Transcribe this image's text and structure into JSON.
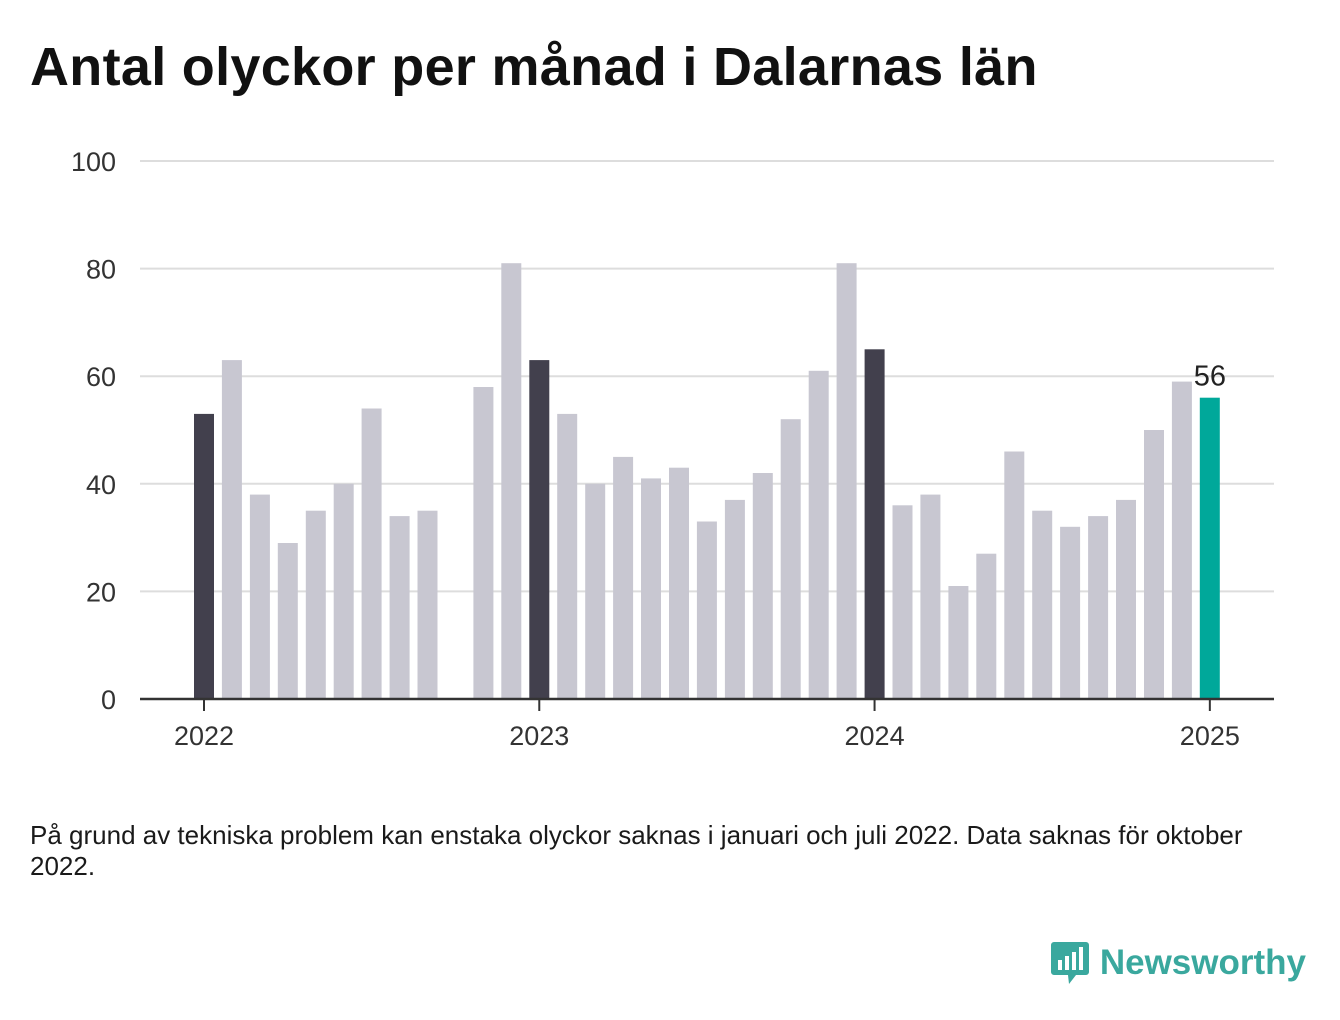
{
  "title": "Antal olyckor per månad i Dalarnas län",
  "note": "På grund av tekniska problem kan enstaka olyckor saknas i januari och juli 2022. Data saknas för oktober 2022.",
  "brand": {
    "name": "Newsworthy",
    "icon": "newsworthy-logo-icon"
  },
  "colors": {
    "bar": "#c8c7d1",
    "january": "#42404d",
    "latest": "#00a89a",
    "grid": "#dddddd",
    "axis": "#333333"
  },
  "chart_data": {
    "type": "bar",
    "title": "Antal olyckor per månad i Dalarnas län",
    "x_ticks": [
      "2022",
      "2023",
      "2024",
      "2025"
    ],
    "ylim": [
      0,
      100
    ],
    "y_ticks": [
      0,
      20,
      40,
      60,
      80,
      100
    ],
    "grid": true,
    "categories": [
      "2022-01",
      "2022-02",
      "2022-03",
      "2022-04",
      "2022-05",
      "2022-06",
      "2022-07",
      "2022-08",
      "2022-09",
      "2022-10",
      "2022-11",
      "2022-12",
      "2023-01",
      "2023-02",
      "2023-03",
      "2023-04",
      "2023-05",
      "2023-06",
      "2023-07",
      "2023-08",
      "2023-09",
      "2023-10",
      "2023-11",
      "2023-12",
      "2024-01",
      "2024-02",
      "2024-03",
      "2024-04",
      "2024-05",
      "2024-06",
      "2024-07",
      "2024-08",
      "2024-09",
      "2024-10",
      "2024-11",
      "2024-12",
      "2025-01"
    ],
    "values": [
      53,
      63,
      38,
      29,
      35,
      40,
      54,
      34,
      35,
      null,
      58,
      81,
      63,
      53,
      40,
      45,
      41,
      43,
      33,
      37,
      42,
      52,
      61,
      81,
      65,
      36,
      38,
      21,
      27,
      46,
      35,
      32,
      34,
      37,
      50,
      59,
      56
    ],
    "annotations": [
      {
        "category": "2025-01",
        "text": "56"
      }
    ]
  }
}
